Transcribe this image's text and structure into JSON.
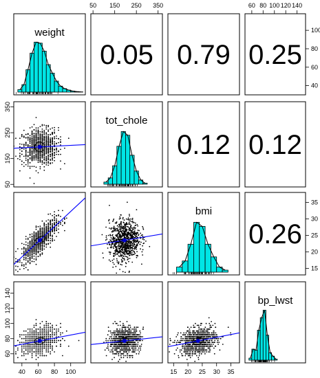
{
  "chart_data": {
    "type": "scatter",
    "variables": [
      {
        "name": "weight",
        "ticks": [
          40,
          60,
          80,
          100
        ],
        "range": [
          30,
          118
        ]
      },
      {
        "name": "tot_chole",
        "ticks": [
          50,
          150,
          250,
          350
        ],
        "range": [
          40,
          370
        ]
      },
      {
        "name": "bmi",
        "ticks": [
          15,
          20,
          25,
          30,
          35
        ],
        "range": [
          13,
          38
        ]
      },
      {
        "name": "bp_lwst",
        "ticks": [
          60,
          80,
          100,
          120,
          140
        ],
        "range": [
          48,
          155
        ]
      }
    ],
    "histogram_ticks": {
      "weight": [
        40,
        60,
        80,
        100
      ],
      "tot_chole": [
        50,
        150,
        250,
        350
      ],
      "bmi": [
        20,
        25,
        30,
        35
      ],
      "bp_lwst": [
        60,
        80,
        120
      ]
    },
    "correlations": [
      {
        "row": 0,
        "col": 1,
        "label": "0.05"
      },
      {
        "row": 0,
        "col": 2,
        "label": "0.79"
      },
      {
        "row": 0,
        "col": 3,
        "label": "0.25"
      },
      {
        "row": 1,
        "col": 2,
        "label": "0.12"
      },
      {
        "row": 1,
        "col": 3,
        "label": "0.12"
      },
      {
        "row": 2,
        "col": 3,
        "label": "0.26"
      }
    ],
    "means": {
      "weight": 62,
      "tot_chole": 195,
      "bmi": 23.5,
      "bp_lwst": 77
    },
    "sds": {
      "weight": 11,
      "tot_chole": 35,
      "bmi": 3.2,
      "bp_lwst": 9
    },
    "histograms": {
      "weight": {
        "edges": [
          35,
          40,
          45,
          50,
          55,
          60,
          65,
          70,
          75,
          80,
          85,
          90,
          95,
          100,
          105,
          110,
          115
        ],
        "counts": [
          0.05,
          0.15,
          0.45,
          0.78,
          1.0,
          0.98,
          0.82,
          0.55,
          0.38,
          0.22,
          0.12,
          0.07,
          0.04,
          0.02,
          0.01,
          0.005
        ]
      },
      "tot_chole": {
        "edges": [
          100,
          120,
          140,
          160,
          180,
          200,
          220,
          240,
          260,
          280,
          300
        ],
        "counts": [
          0.04,
          0.12,
          0.35,
          0.72,
          1.0,
          0.93,
          0.55,
          0.25,
          0.08,
          0.02
        ]
      },
      "bmi": {
        "edges": [
          16,
          18,
          20,
          22,
          24,
          26,
          28,
          30,
          32,
          34
        ],
        "counts": [
          0.1,
          0.22,
          0.55,
          0.98,
          0.9,
          0.55,
          0.3,
          0.1,
          0.04
        ]
      },
      "bp_lwst": {
        "edges": [
          55,
          60,
          65,
          70,
          75,
          80,
          85,
          90,
          95,
          100,
          105
        ],
        "counts": [
          0.04,
          0.22,
          0.2,
          0.6,
          0.85,
          1.0,
          0.5,
          0.15,
          0.08,
          0.02
        ]
      }
    },
    "colors": {
      "hist_fill": "#00e5e5",
      "fit_line": "#0000ff",
      "points": "#000000",
      "mean_dot": "#0000cc"
    }
  }
}
